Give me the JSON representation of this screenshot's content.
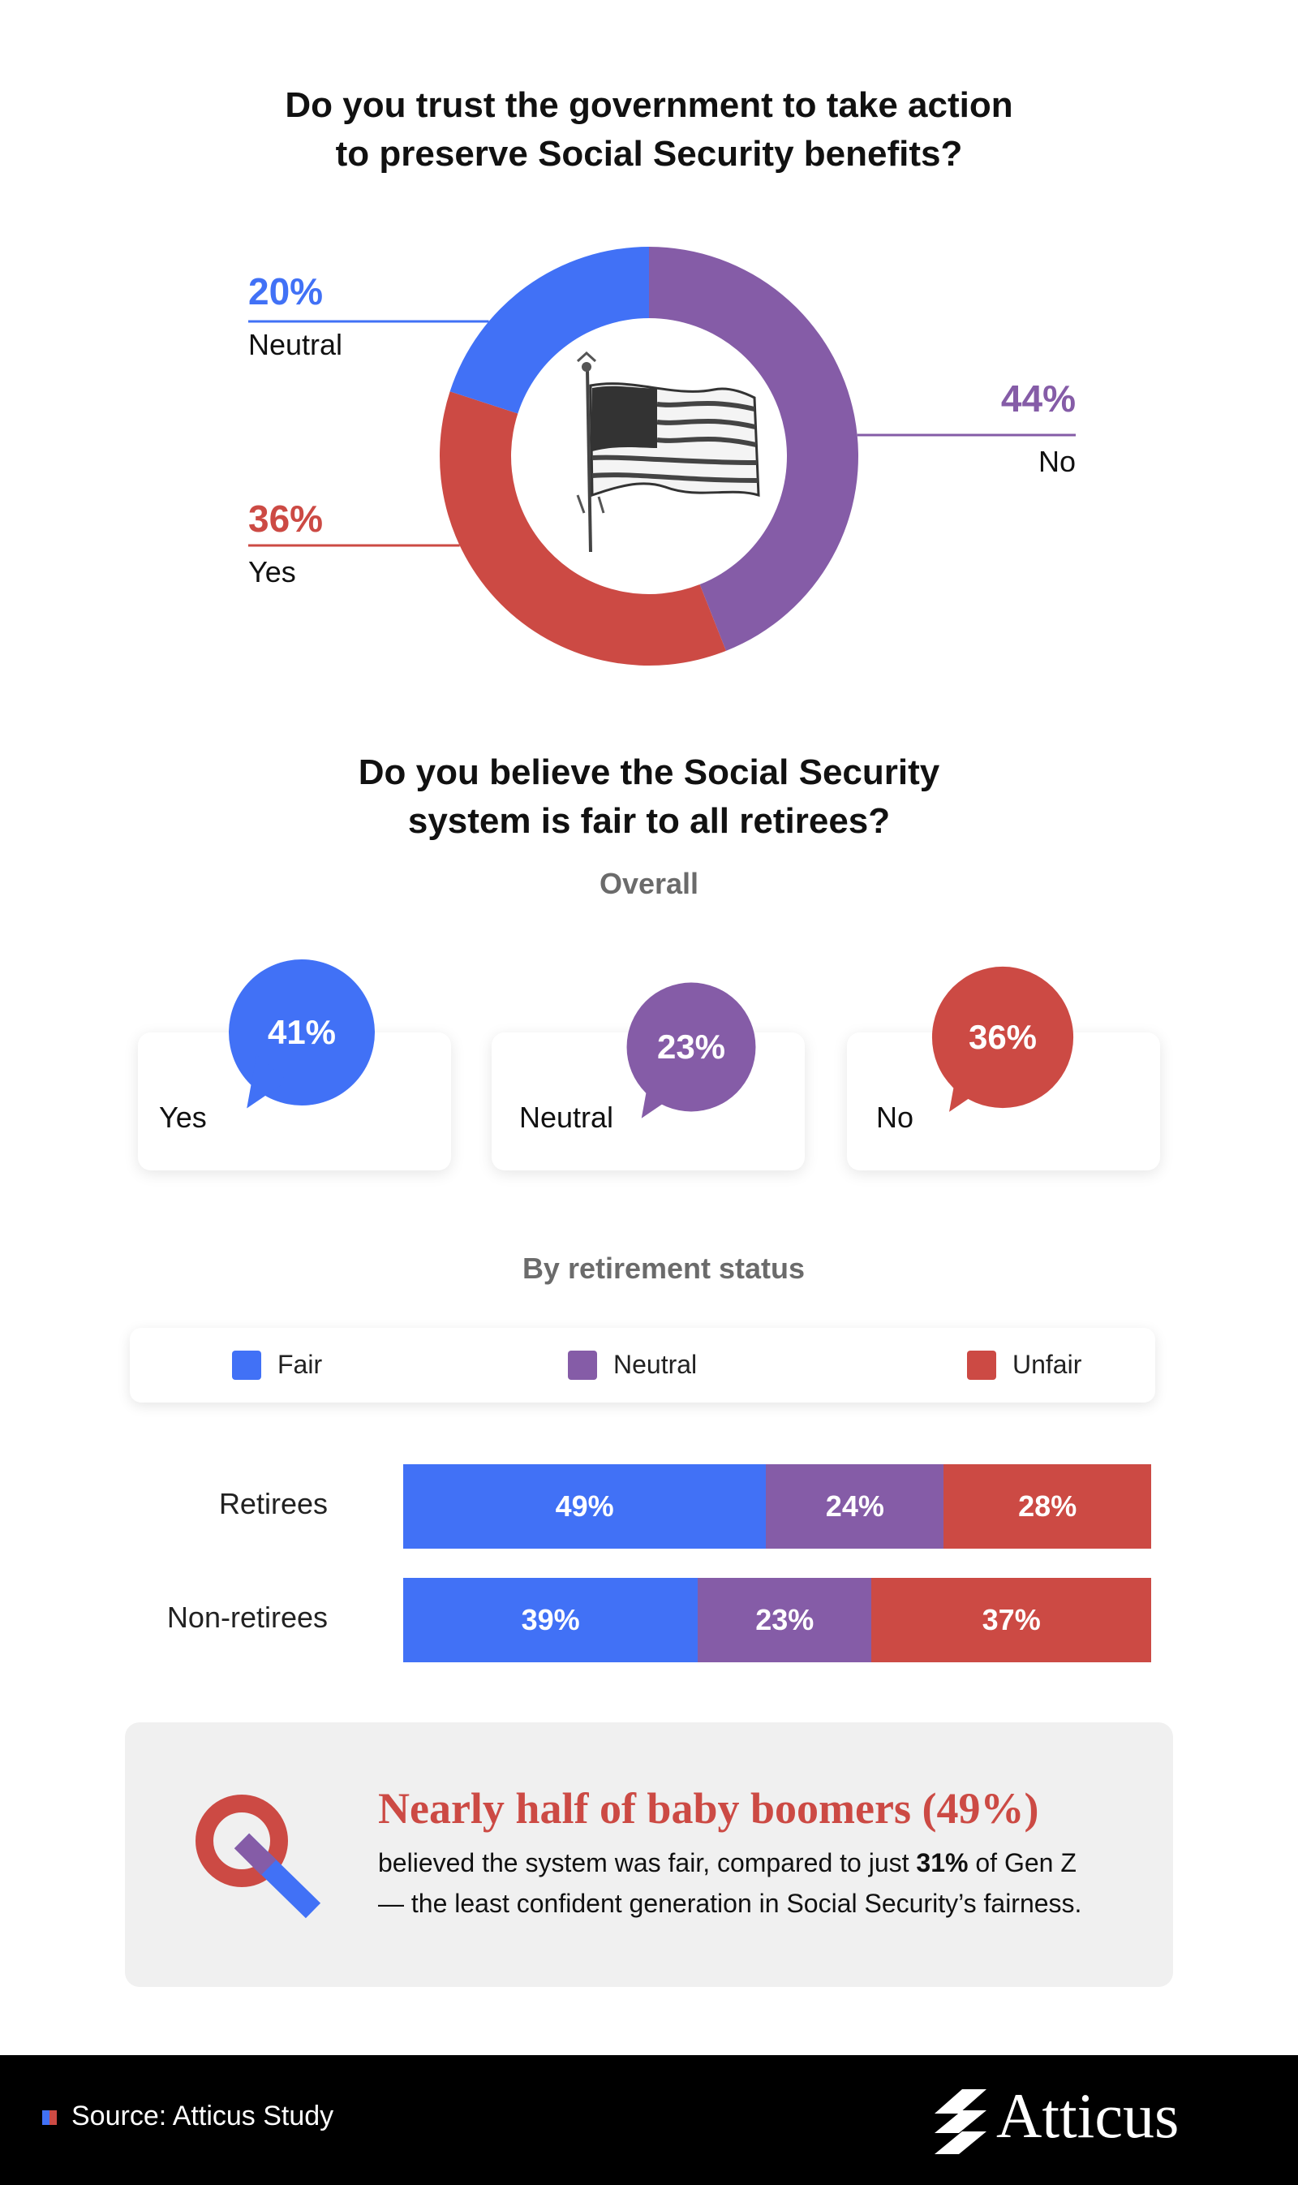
{
  "colors": {
    "blue": "#4171f6",
    "purple": "#855ca7",
    "red": "#cc4a44",
    "grey_text": "#6b6b6b"
  },
  "section1": {
    "title_line1": "Do you trust the government to take action",
    "title_line2": "to preserve Social Security benefits?",
    "image_icon": "american-flag-illustration"
  },
  "section2": {
    "title_line1": "Do you believe the Social Security",
    "title_line2": "system is fair to all retirees?",
    "overall_label": "Overall",
    "by_status_label": "By retirement status"
  },
  "callout": {
    "icon": "magnifying-glass-icon",
    "headline": "Nearly half of baby boomers (49%)",
    "body_part1": "believed the system was fair, compared to just ",
    "body_bold": "31%",
    "body_part2": " of Gen Z",
    "body_line2": "— the least confident generation in Social Security’s fairness."
  },
  "footer": {
    "source": "Source: Atticus Study",
    "brand": "Atticus"
  },
  "chart_data": [
    {
      "type": "pie",
      "title": "Do you trust the government to take action to preserve Social Security benefits?",
      "donut": true,
      "slices": [
        {
          "label": "No",
          "value": 44,
          "value_label": "44%",
          "color": "#855ca7"
        },
        {
          "label": "Yes",
          "value": 36,
          "value_label": "36%",
          "color": "#cc4a44"
        },
        {
          "label": "Neutral",
          "value": 20,
          "value_label": "20%",
          "color": "#4171f6"
        }
      ]
    },
    {
      "type": "bar",
      "title": "Overall",
      "categories": [
        "Yes",
        "Neutral",
        "No"
      ],
      "values": [
        41,
        23,
        36
      ],
      "value_labels": [
        "41%",
        "23%",
        "36%"
      ],
      "colors": [
        "#4171f6",
        "#855ca7",
        "#cc4a44"
      ]
    },
    {
      "type": "bar",
      "stacked": true,
      "horizontal": true,
      "title": "By retirement status",
      "categories": [
        "Retirees",
        "Non-retirees"
      ],
      "legend": "top",
      "series": [
        {
          "name": "Fair",
          "color": "#4171f6",
          "values": [
            49,
            39
          ],
          "value_labels": [
            "49%",
            "39%"
          ]
        },
        {
          "name": "Neutral",
          "color": "#855ca7",
          "values": [
            24,
            23
          ],
          "value_labels": [
            "24%",
            "23%"
          ]
        },
        {
          "name": "Unfair",
          "color": "#cc4a44",
          "values": [
            28,
            37
          ],
          "value_labels": [
            "28%",
            "37%"
          ]
        }
      ]
    }
  ]
}
